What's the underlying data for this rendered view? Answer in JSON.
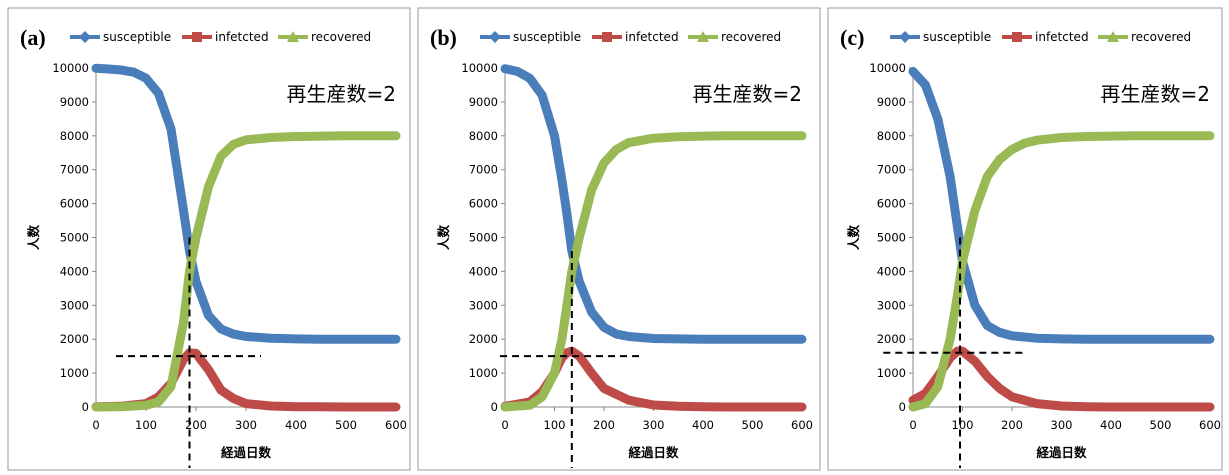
{
  "colors": {
    "susceptible": "#4a7ebb",
    "infected": "#be4b48",
    "recovered": "#98b954"
  },
  "chart_data": [
    {
      "panel_label": "(a)",
      "type": "line",
      "series": [
        {
          "name": "susceptible",
          "x": [
            0,
            25,
            50,
            75,
            100,
            125,
            150,
            175,
            187,
            200,
            225,
            250,
            275,
            300,
            350,
            400,
            450,
            500,
            550,
            600
          ],
          "values": [
            9990,
            9970,
            9940,
            9880,
            9700,
            9250,
            8200,
            5800,
            4600,
            3700,
            2700,
            2300,
            2150,
            2080,
            2030,
            2010,
            2000,
            2000,
            2000,
            2000
          ]
        },
        {
          "name": "infetcted",
          "x": [
            0,
            50,
            100,
            125,
            150,
            175,
            187,
            200,
            225,
            250,
            275,
            300,
            350,
            400,
            450,
            500,
            550,
            600
          ],
          "values": [
            5,
            20,
            100,
            300,
            700,
            1400,
            1600,
            1580,
            1100,
            500,
            250,
            100,
            30,
            10,
            5,
            0,
            0,
            0
          ]
        },
        {
          "name": "recovered",
          "x": [
            0,
            50,
            100,
            125,
            150,
            175,
            187,
            200,
            225,
            250,
            275,
            300,
            350,
            400,
            450,
            500,
            550,
            600
          ],
          "values": [
            0,
            10,
            50,
            150,
            600,
            2500,
            4000,
            5000,
            6500,
            7400,
            7750,
            7880,
            7950,
            7980,
            7990,
            8000,
            8000,
            8000
          ]
        }
      ],
      "xlabel": "経過日数",
      "ylabel": "人数",
      "xlim": [
        0,
        600
      ],
      "ylim": [
        0,
        10000
      ],
      "xticks": [
        0,
        100,
        200,
        300,
        400,
        500,
        600
      ],
      "yticks": [
        0,
        1000,
        2000,
        3000,
        4000,
        5000,
        6000,
        7000,
        8000,
        9000,
        10000
      ],
      "annotation": "再生産数=2",
      "guides": {
        "vline_x": 187,
        "vline_ymax": 5000,
        "hline_y": 1500,
        "hline_x0": 40,
        "hline_x1": 330
      },
      "legend": "top"
    },
    {
      "panel_label": "(b)",
      "type": "line",
      "series": [
        {
          "name": "susceptible",
          "x": [
            0,
            25,
            50,
            75,
            100,
            115,
            125,
            135,
            150,
            175,
            200,
            225,
            250,
            300,
            350,
            400,
            450,
            500,
            550,
            600
          ],
          "values": [
            9980,
            9900,
            9700,
            9200,
            8000,
            6700,
            5700,
            4600,
            3700,
            2800,
            2350,
            2150,
            2080,
            2020,
            2010,
            2000,
            2000,
            2000,
            2000,
            2000
          ]
        },
        {
          "name": "infetcted",
          "x": [
            0,
            50,
            75,
            100,
            115,
            125,
            135,
            150,
            175,
            200,
            250,
            300,
            350,
            400,
            450,
            500,
            550,
            600
          ],
          "values": [
            20,
            150,
            450,
            1000,
            1450,
            1600,
            1650,
            1500,
            1000,
            550,
            200,
            60,
            20,
            10,
            0,
            0,
            0,
            0
          ]
        },
        {
          "name": "recovered",
          "x": [
            0,
            50,
            75,
            100,
            115,
            125,
            135,
            150,
            175,
            200,
            225,
            250,
            300,
            350,
            400,
            450,
            500,
            550,
            600
          ],
          "values": [
            0,
            50,
            300,
            1000,
            2000,
            3000,
            4000,
            5000,
            6400,
            7200,
            7600,
            7800,
            7930,
            7970,
            7990,
            8000,
            8000,
            8000,
            8000
          ]
        }
      ],
      "xlabel": "経過日数",
      "ylabel": "人数",
      "xlim": [
        0,
        600
      ],
      "ylim": [
        0,
        10000
      ],
      "xticks": [
        0,
        100,
        200,
        300,
        400,
        500,
        600
      ],
      "yticks": [
        0,
        1000,
        2000,
        3000,
        4000,
        5000,
        6000,
        7000,
        8000,
        9000,
        10000
      ],
      "annotation": "再生産数=2",
      "guides": {
        "vline_x": 135,
        "vline_ymax": 4600,
        "hline_y": 1500,
        "hline_x0": -10,
        "hline_x1": 275
      },
      "legend": "top"
    },
    {
      "panel_label": "(c)",
      "type": "line",
      "series": [
        {
          "name": "susceptible",
          "x": [
            0,
            25,
            50,
            75,
            90,
            100,
            125,
            150,
            175,
            200,
            250,
            300,
            350,
            400,
            450,
            500,
            550,
            600
          ],
          "values": [
            9900,
            9500,
            8500,
            6800,
            5300,
            4300,
            3000,
            2400,
            2200,
            2100,
            2030,
            2010,
            2000,
            2000,
            2000,
            2000,
            2000,
            2000
          ]
        },
        {
          "name": "infetcted",
          "x": [
            0,
            25,
            50,
            75,
            90,
            100,
            125,
            150,
            175,
            200,
            250,
            300,
            350,
            400,
            450,
            500,
            550,
            600
          ],
          "values": [
            200,
            400,
            900,
            1450,
            1650,
            1650,
            1350,
            900,
            550,
            300,
            100,
            30,
            10,
            0,
            0,
            0,
            0,
            0
          ]
        },
        {
          "name": "recovered",
          "x": [
            0,
            25,
            50,
            75,
            90,
            100,
            125,
            150,
            175,
            200,
            225,
            250,
            300,
            350,
            400,
            450,
            500,
            550,
            600
          ],
          "values": [
            0,
            100,
            600,
            2000,
            3300,
            4300,
            5800,
            6800,
            7300,
            7600,
            7780,
            7870,
            7950,
            7980,
            7990,
            8000,
            8000,
            8000,
            8000
          ]
        }
      ],
      "xlabel": "経過日数",
      "ylabel": "人数",
      "xlim": [
        0,
        600
      ],
      "ylim": [
        0,
        10000
      ],
      "xticks": [
        0,
        100,
        200,
        300,
        400,
        500,
        600
      ],
      "yticks": [
        0,
        1000,
        2000,
        3000,
        4000,
        5000,
        6000,
        7000,
        8000,
        9000,
        10000
      ],
      "annotation": "再生産数=2",
      "guides": {
        "vline_x": 95,
        "vline_ymax": 5000,
        "hline_y": 1600,
        "hline_x0": -60,
        "hline_x1": 230
      },
      "legend": "top"
    }
  ]
}
